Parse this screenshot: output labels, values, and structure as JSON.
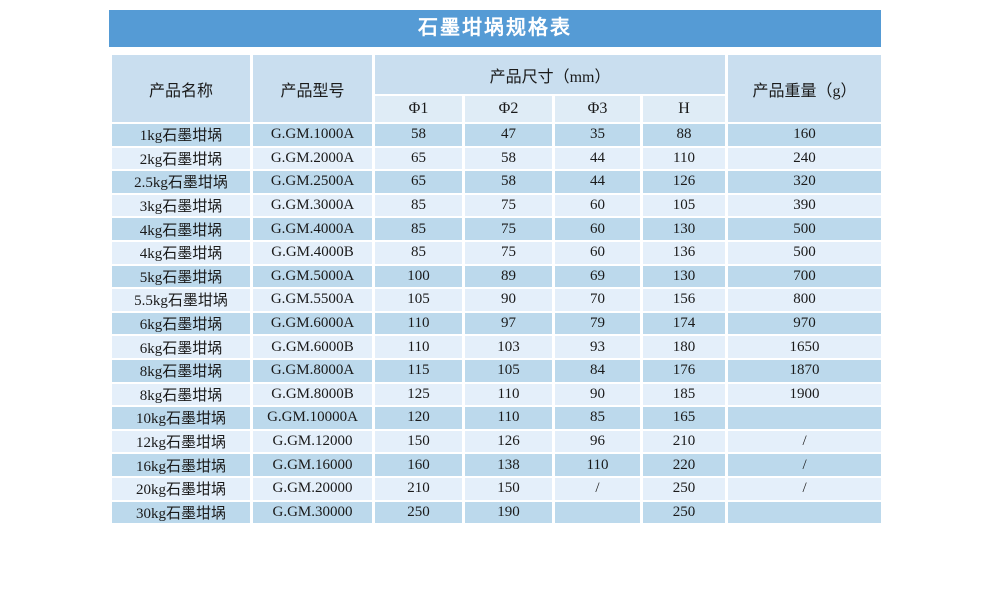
{
  "title": "石墨坩埚规格表",
  "table": {
    "headers": {
      "name": "产品名称",
      "model": "产品型号",
      "size_group": "产品尺寸（mm）",
      "sub": [
        "Φ1",
        "Φ2",
        "Φ3",
        "H"
      ],
      "weight": "产品重量（g）"
    },
    "rows": [
      [
        "1kg石墨坩埚",
        "G.GM.1000A",
        "58",
        "47",
        "35",
        "88",
        "160"
      ],
      [
        "2kg石墨坩埚",
        "G.GM.2000A",
        "65",
        "58",
        "44",
        "110",
        "240"
      ],
      [
        "2.5kg石墨坩埚",
        "G.GM.2500A",
        "65",
        "58",
        "44",
        "126",
        "320"
      ],
      [
        "3kg石墨坩埚",
        "G.GM.3000A",
        "85",
        "75",
        "60",
        "105",
        "390"
      ],
      [
        "4kg石墨坩埚",
        "G.GM.4000A",
        "85",
        "75",
        "60",
        "130",
        "500"
      ],
      [
        "4kg石墨坩埚",
        "G.GM.4000B",
        "85",
        "75",
        "60",
        "136",
        "500"
      ],
      [
        "5kg石墨坩埚",
        "G.GM.5000A",
        "100",
        "89",
        "69",
        "130",
        "700"
      ],
      [
        "5.5kg石墨坩埚",
        "G.GM.5500A",
        "105",
        "90",
        "70",
        "156",
        "800"
      ],
      [
        "6kg石墨坩埚",
        "G.GM.6000A",
        "110",
        "97",
        "79",
        "174",
        "970"
      ],
      [
        "6kg石墨坩埚",
        "G.GM.6000B",
        "110",
        "103",
        "93",
        "180",
        "1650"
      ],
      [
        "8kg石墨坩埚",
        "G.GM.8000A",
        "115",
        "105",
        "84",
        "176",
        "1870"
      ],
      [
        "8kg石墨坩埚",
        "G.GM.8000B",
        "125",
        "110",
        "90",
        "185",
        "1900"
      ],
      [
        "10kg石墨坩埚",
        "G.GM.10000A",
        "120",
        "110",
        "85",
        "165",
        ""
      ],
      [
        "12kg石墨坩埚",
        "G.GM.12000",
        "150",
        "126",
        "96",
        "210",
        "/"
      ],
      [
        "16kg石墨坩埚",
        "G.GM.16000",
        "160",
        "138",
        "110",
        "220",
        "/"
      ],
      [
        "20kg石墨坩埚",
        "G.GM.20000",
        "210",
        "150",
        "/",
        "250",
        "/"
      ],
      [
        "30kg石墨坩埚",
        "G.GM.30000",
        "250",
        "190",
        "",
        "250",
        ""
      ]
    ]
  },
  "colors": {
    "title_bar": "#559bd5",
    "title_text": "#ffffff",
    "header_cell": "#c9deef",
    "subheader_cell": "#dfecf6",
    "row_dark": "#bcd9ec",
    "row_light": "#e4effa",
    "border": "#ffffff",
    "text": "#1a1a1a"
  }
}
